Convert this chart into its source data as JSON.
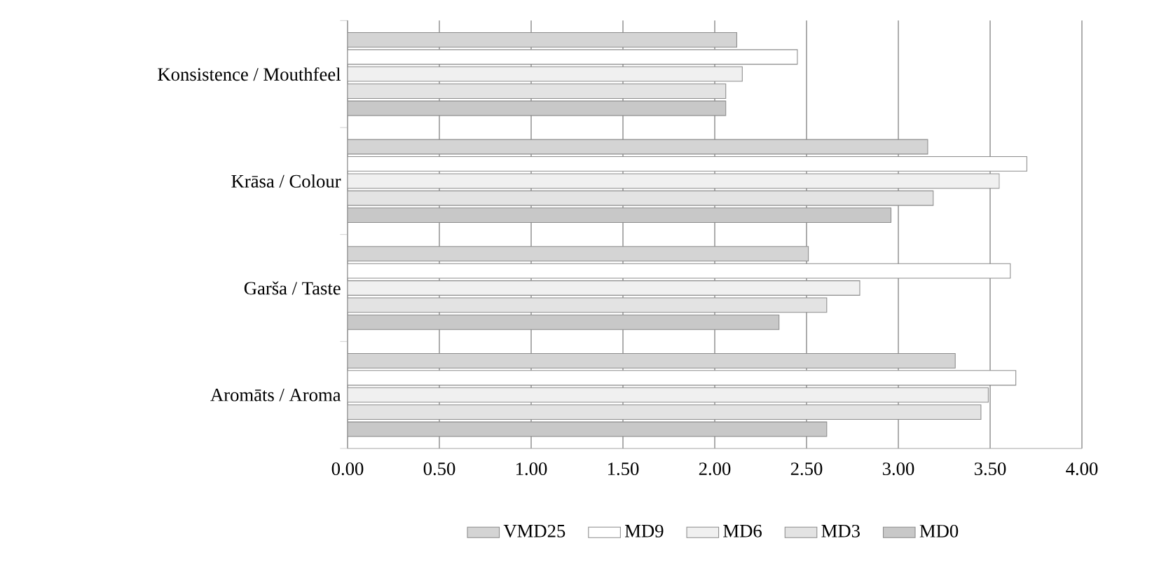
{
  "chart_data": {
    "type": "bar",
    "orientation": "horizontal",
    "categories": [
      "Konsistence / Mouthfeel",
      "Krāsa / Colour",
      "Garša / Taste",
      "Aromāts / Aroma"
    ],
    "series": [
      {
        "name": "VMD25",
        "color": "#d4d4d4",
        "values": [
          2.12,
          3.16,
          2.51,
          3.31
        ]
      },
      {
        "name": "MD9",
        "color": "#ffffff",
        "values": [
          2.45,
          3.7,
          3.61,
          3.64
        ]
      },
      {
        "name": "MD6",
        "color": "#f0f0f0",
        "values": [
          2.15,
          3.55,
          2.79,
          3.49
        ]
      },
      {
        "name": "MD3",
        "color": "#e3e3e3",
        "values": [
          2.06,
          3.19,
          2.61,
          3.45
        ]
      },
      {
        "name": "MD0",
        "color": "#c8c8c8",
        "values": [
          2.06,
          2.96,
          2.35,
          2.61
        ]
      }
    ],
    "xlim": [
      0,
      4
    ],
    "xticks": [
      {
        "value": 0,
        "label": "0.00"
      },
      {
        "value": 0.5,
        "label": "0.50"
      },
      {
        "value": 1,
        "label": "1.00"
      },
      {
        "value": 1.5,
        "label": "1.50"
      },
      {
        "value": 2,
        "label": "2.00"
      },
      {
        "value": 2.5,
        "label": "2.50"
      },
      {
        "value": 3,
        "label": "3.00"
      },
      {
        "value": 3.5,
        "label": "3.50"
      },
      {
        "value": 4,
        "label": "4.00"
      }
    ],
    "grid": "x",
    "legend": "bottom"
  }
}
